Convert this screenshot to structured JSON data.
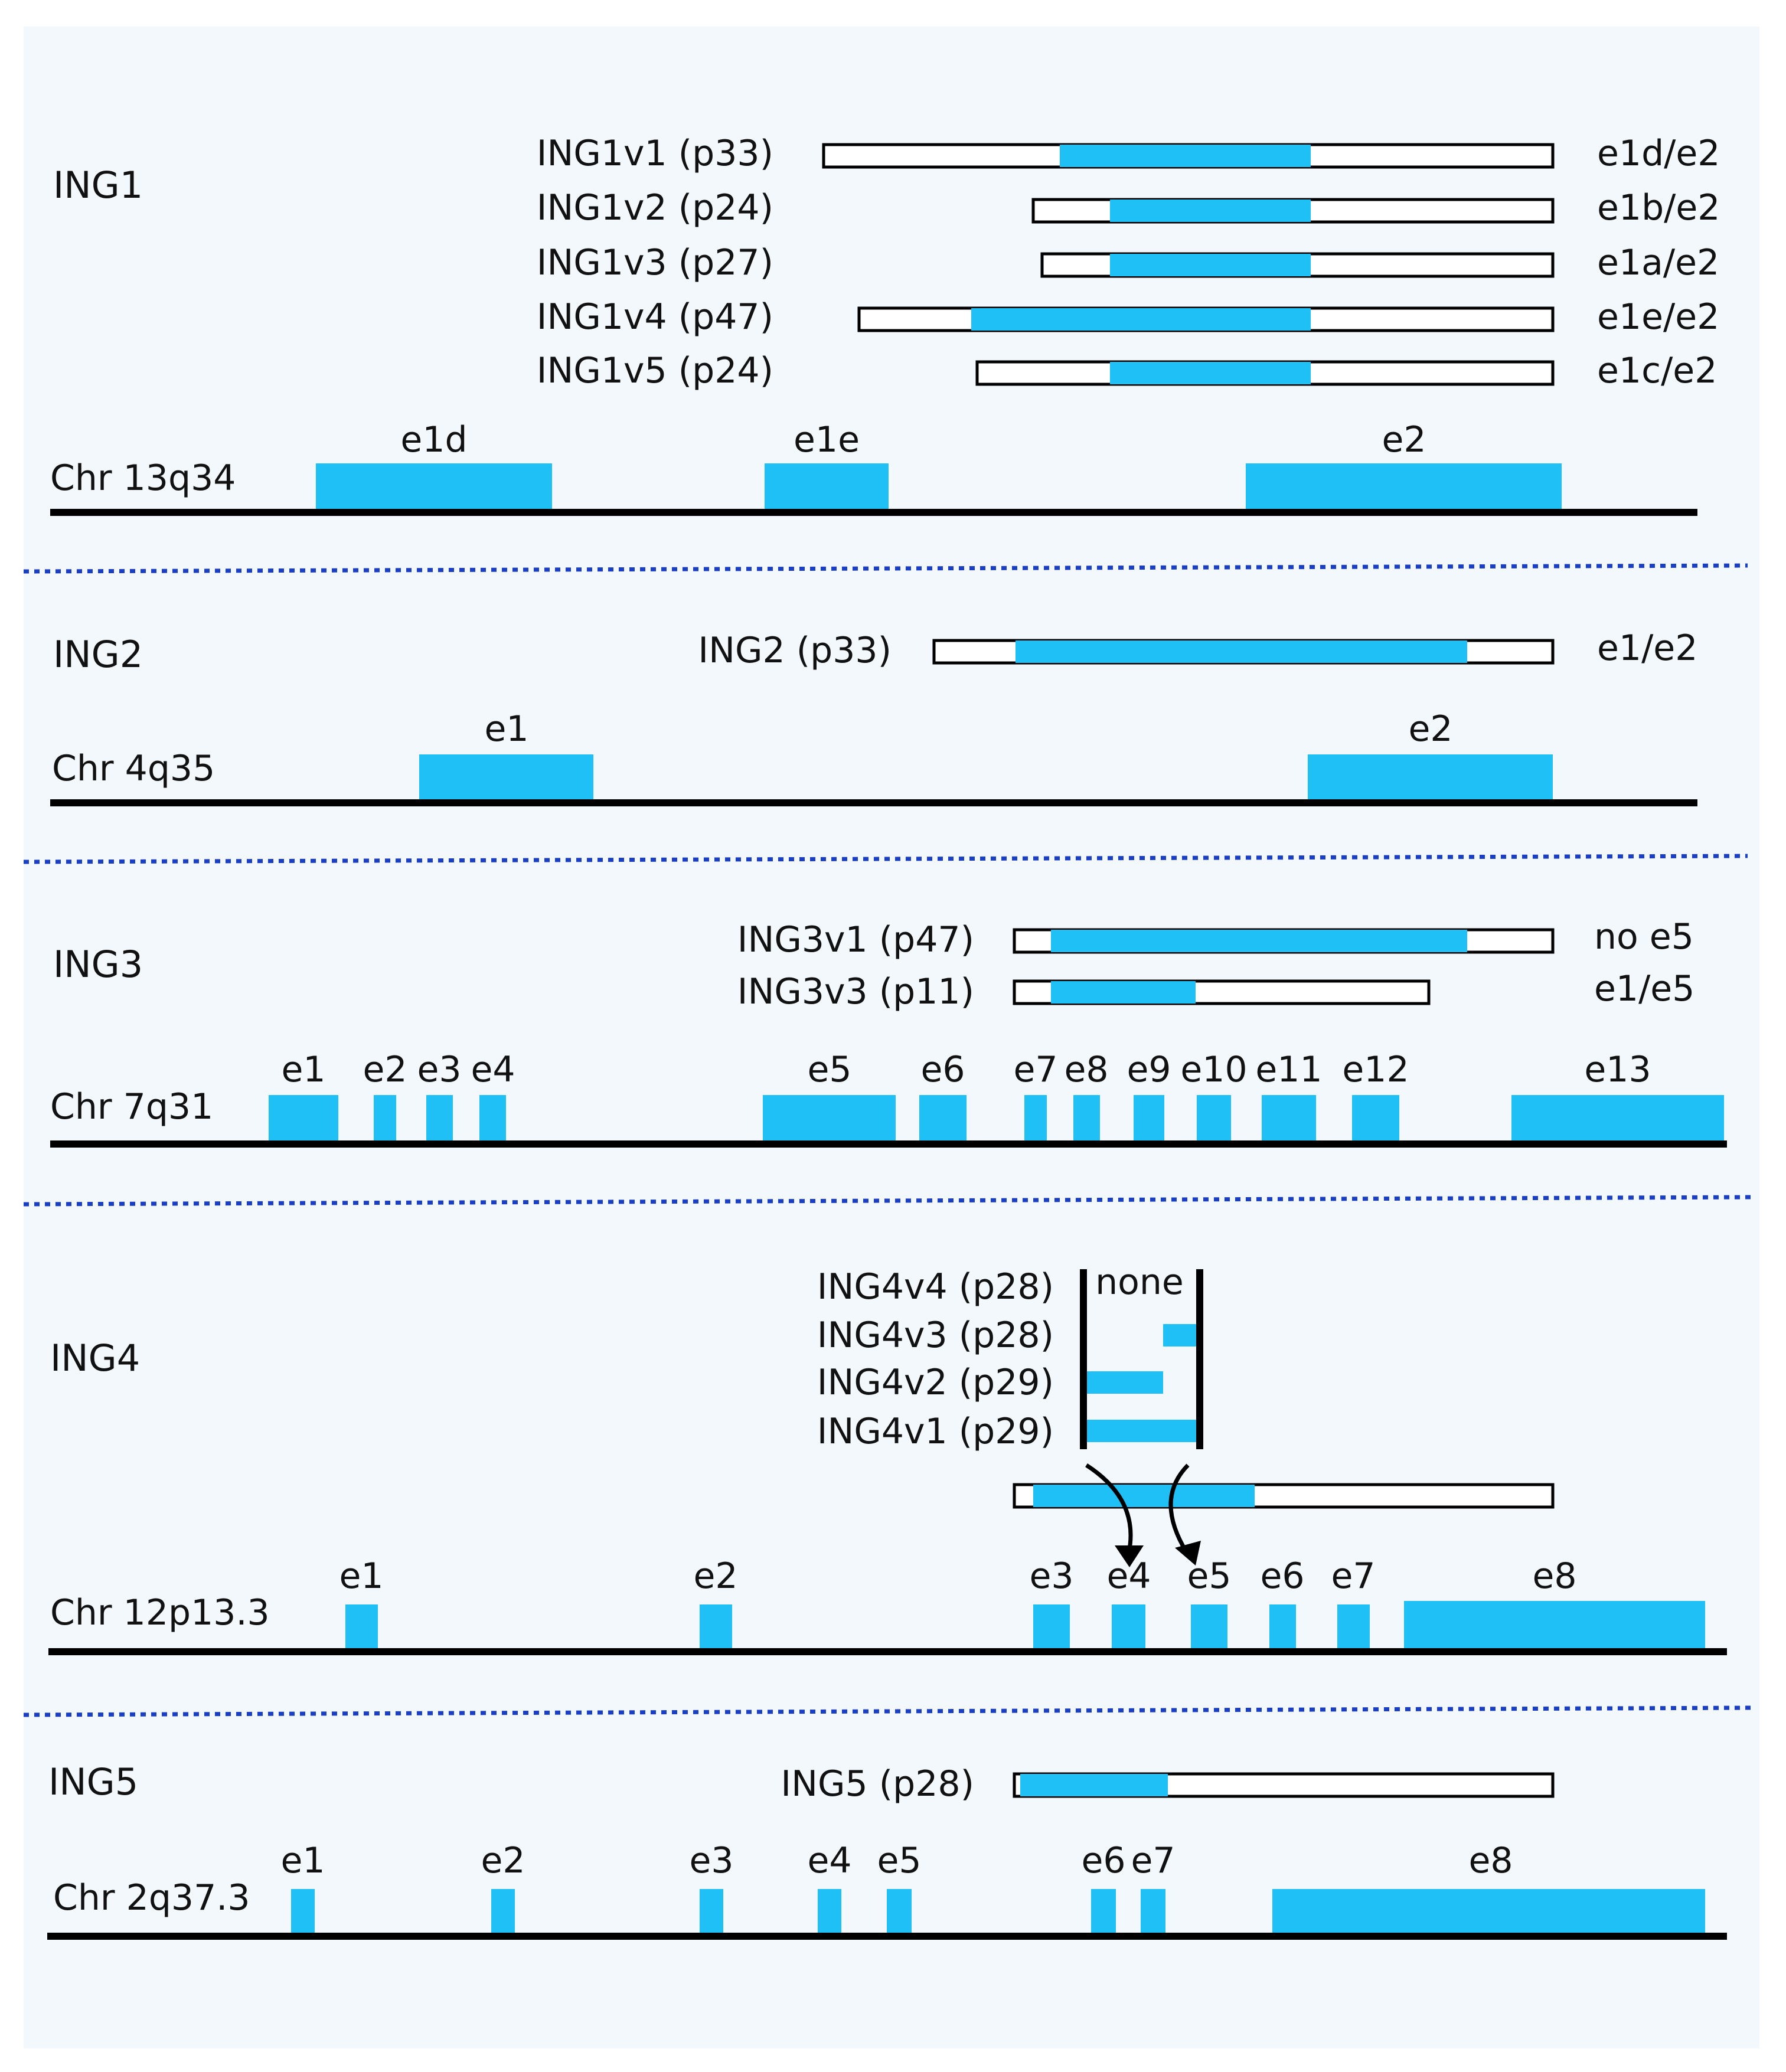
{
  "colors": {
    "background": "#f2f8fc",
    "exon": "#1fc0f5",
    "line": "#000000",
    "divider": "#1a3fc4"
  },
  "sections": [
    {
      "gene": "ING1",
      "chromosome": "Chr 13q34",
      "transcripts": [
        {
          "label": "ING1v1 (p33)",
          "exons": "e1d/e2"
        },
        {
          "label": "ING1v2 (p24)",
          "exons": "e1b/e2"
        },
        {
          "label": "ING1v3 (p27)",
          "exons": "e1a/e2"
        },
        {
          "label": "ING1v4 (p47)",
          "exons": "e1e/e2"
        },
        {
          "label": "ING1v5 (p24)",
          "exons": "e1c/e2"
        }
      ],
      "exon_labels": [
        "e1d",
        "e1e",
        "e2"
      ]
    },
    {
      "gene": "ING2",
      "chromosome": "Chr 4q35",
      "transcripts": [
        {
          "label": "ING2 (p33)",
          "exons": "e1/e2"
        }
      ],
      "exon_labels": [
        "e1",
        "e2"
      ]
    },
    {
      "gene": "ING3",
      "chromosome": "Chr 7q31",
      "transcripts": [
        {
          "label": "ING3v1 (p47)",
          "exons": "no e5"
        },
        {
          "label": "ING3v3 (p11)",
          "exons": "e1/e5"
        }
      ],
      "exon_labels": [
        "e1",
        "e2",
        "e3",
        "e4",
        "e5",
        "e6",
        "e7",
        "e8",
        "e9",
        "e10",
        "e11",
        "e12",
        "e13"
      ]
    },
    {
      "gene": "ING4",
      "chromosome": "Chr 12p13.3",
      "transcripts": [
        {
          "label": "ING4v4 (p28)",
          "insert": "none"
        },
        {
          "label": "ING4v3 (p28)"
        },
        {
          "label": "ING4v2 (p29)"
        },
        {
          "label": "ING4v1 (p29)"
        }
      ],
      "exon_labels": [
        "e1",
        "e2",
        "e3",
        "e4",
        "e5",
        "e6",
        "e7",
        "e8"
      ]
    },
    {
      "gene": "ING5",
      "chromosome": "Chr 2q37.3",
      "transcripts": [
        {
          "label": "ING5 (p28)"
        }
      ],
      "exon_labels": [
        "e1",
        "e2",
        "e3",
        "e4",
        "e5",
        "e6",
        "e7",
        "e8"
      ]
    }
  ]
}
